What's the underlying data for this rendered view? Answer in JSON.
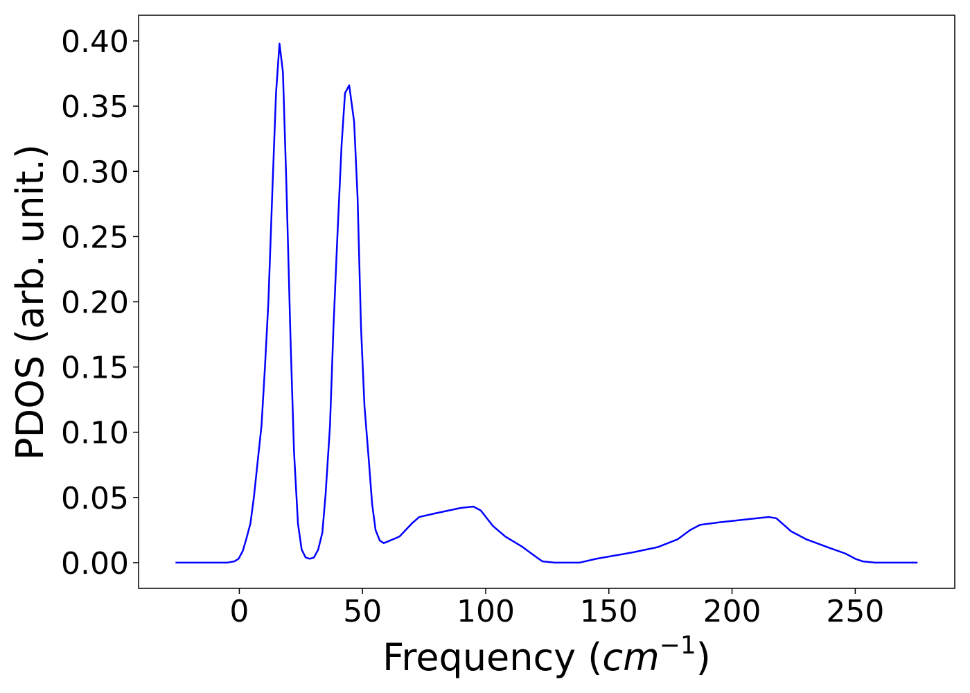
{
  "chart_data": {
    "type": "line",
    "xlabel": [
      "Frequency (",
      "cm",
      "−1",
      ")"
    ],
    "ylabel": "PDOS (arb. unit.)",
    "xlim": [
      -40.9,
      290.4
    ],
    "xticks": [
      0,
      50,
      100,
      150,
      200,
      250
    ],
    "ylim": [
      -0.0197,
      0.4197
    ],
    "yticks": [
      {
        "value": 0,
        "label": "0.00"
      },
      {
        "value": 0.05,
        "label": "0.05"
      },
      {
        "value": 0.1,
        "label": "0.10"
      },
      {
        "value": 0.15,
        "label": "0.15"
      },
      {
        "value": 0.2,
        "label": "0.20"
      },
      {
        "value": 0.25,
        "label": "0.25"
      },
      {
        "value": 0.3,
        "label": "0.30"
      },
      {
        "value": 0.35,
        "label": "0.35"
      },
      {
        "value": 0.4,
        "label": "0.40"
      }
    ],
    "grid": false,
    "series": [
      {
        "color": "#0000ff",
        "x": [
          -25.9,
          -5,
          -2,
          -0.3,
          1.4,
          2.8,
          4.5,
          5.9,
          7.3,
          9,
          10.4,
          11.8,
          13.5,
          14.9,
          16.3,
          17.7,
          19.1,
          20.8,
          22.2,
          23.8,
          25.3,
          26.9,
          28.6,
          30.3,
          32,
          33.7,
          35,
          36.8,
          38.2,
          39.8,
          41.5,
          42.9,
          44.6,
          46.6,
          48,
          49.4,
          50.8,
          52.5,
          53.9,
          55.3,
          57,
          58.6,
          60,
          65,
          70,
          73,
          80,
          90,
          95,
          98,
          103,
          108,
          115,
          120,
          123,
          128,
          138,
          145,
          160,
          170,
          178,
          183,
          187,
          195,
          210,
          215,
          218,
          224,
          230,
          240,
          246,
          250,
          253,
          258,
          275.3
        ],
        "values": [
          0,
          0,
          0.001,
          0.003,
          0.009,
          0.018,
          0.03,
          0.05,
          0.075,
          0.105,
          0.15,
          0.2,
          0.29,
          0.36,
          0.398,
          0.376,
          0.29,
          0.17,
          0.085,
          0.03,
          0.01,
          0.004,
          0.003,
          0.004,
          0.01,
          0.023,
          0.052,
          0.105,
          0.18,
          0.25,
          0.32,
          0.36,
          0.366,
          0.338,
          0.28,
          0.18,
          0.12,
          0.08,
          0.045,
          0.025,
          0.017,
          0.015,
          0.016,
          0.02,
          0.03,
          0.035,
          0.038,
          0.042,
          0.043,
          0.04,
          0.028,
          0.02,
          0.012,
          0.005,
          0.001,
          0,
          0,
          0.003,
          0.008,
          0.012,
          0.018,
          0.025,
          0.029,
          0.031,
          0.034,
          0.035,
          0.034,
          0.024,
          0.018,
          0.011,
          0.007,
          0.003,
          0.001,
          0,
          0
        ]
      }
    ]
  }
}
